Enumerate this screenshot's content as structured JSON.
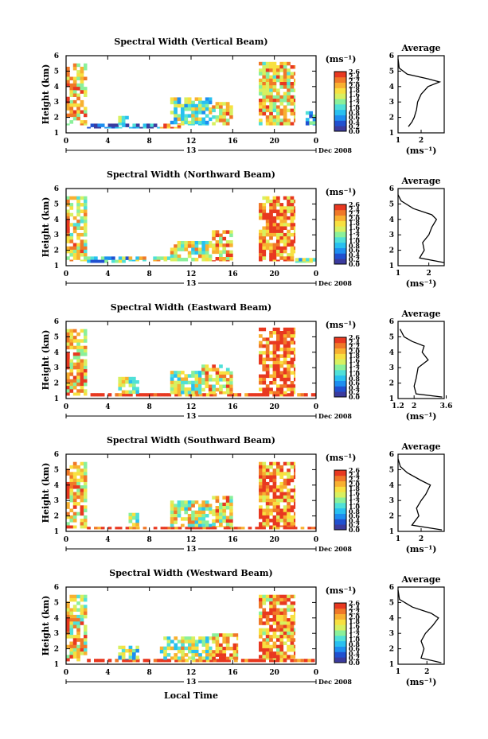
{
  "figure": {
    "xlabel": "Local Time",
    "x_ticks": [
      "0",
      "4",
      "8",
      "12",
      "16",
      "20",
      "0"
    ],
    "date_tick": "13",
    "date_label": "Dec 2008",
    "ylabel": "Height (km)",
    "y_ticks": [
      "1",
      "2",
      "3",
      "4",
      "5",
      "6"
    ],
    "colorbar_unit": "(ms⁻¹)",
    "colorbar_ticks": [
      "2.6",
      "2.4",
      "2.2",
      "2.0",
      "1.8",
      "1.6",
      "1.4",
      "1.2",
      "1.0",
      "0.8",
      "0.6",
      "0.4",
      "0.2",
      "0.0"
    ],
    "profile_title": "Average",
    "profile_xlabel": "(ms⁻¹)"
  },
  "colors": {
    "colormap": [
      "#3b3b9e",
      "#2050d0",
      "#1d8ef0",
      "#28c0f0",
      "#4fe0d8",
      "#8af09a",
      "#d8f060",
      "#f8e040",
      "#f8b030",
      "#f07828",
      "#e83820"
    ]
  },
  "chart_data": [
    {
      "type": "heatmap",
      "title": "Spectral Width (Vertical Beam)",
      "x_range_hours": [
        0,
        24
      ],
      "ylim": [
        1,
        6
      ],
      "ylabel": "Height (km)",
      "blocks": [
        {
          "t": [
            0,
            2
          ],
          "h": [
            1.5,
            5.5
          ],
          "level": 0.75
        },
        {
          "t": [
            2,
            9
          ],
          "h": [
            1.3,
            1.6
          ],
          "level": 0.15
        },
        {
          "t": [
            5,
            6
          ],
          "h": [
            1.5,
            2.1
          ],
          "level": 0.5
        },
        {
          "t": [
            9,
            11
          ],
          "h": [
            1.3,
            1.6
          ],
          "level": 0.95
        },
        {
          "t": [
            10,
            14
          ],
          "h": [
            1.5,
            3.3
          ],
          "level": 0.5
        },
        {
          "t": [
            14,
            16
          ],
          "h": [
            1.5,
            3.0
          ],
          "level": 0.7
        },
        {
          "t": [
            18.5,
            22
          ],
          "h": [
            1.5,
            5.6
          ],
          "level": 0.7
        },
        {
          "t": [
            23,
            24
          ],
          "h": [
            1.5,
            2.4
          ],
          "level": 0.35
        }
      ],
      "profile": {
        "xlim": [
          1,
          3
        ],
        "x_ticks": [
          "1",
          "2"
        ],
        "height": [
          1.4,
          1.7,
          2.0,
          2.5,
          3.0,
          3.5,
          4.0,
          4.3,
          4.5,
          4.8,
          5.2,
          5.8
        ],
        "value": [
          1.45,
          1.6,
          1.7,
          1.8,
          1.85,
          2.0,
          2.3,
          2.8,
          2.3,
          1.4,
          1.05,
          1.0
        ]
      }
    },
    {
      "type": "heatmap",
      "title": "Spectral Width (Northward Beam)",
      "x_range_hours": [
        0,
        24
      ],
      "ylim": [
        1,
        6
      ],
      "ylabel": "Height (km)",
      "blocks": [
        {
          "t": [
            0,
            2
          ],
          "h": [
            1.3,
            5.5
          ],
          "level": 0.7
        },
        {
          "t": [
            2,
            6
          ],
          "h": [
            1.2,
            1.6
          ],
          "level": 0.4
        },
        {
          "t": [
            6,
            10
          ],
          "h": [
            1.3,
            1.6
          ],
          "level": 0.6
        },
        {
          "t": [
            10,
            14
          ],
          "h": [
            1.3,
            2.6
          ],
          "level": 0.6
        },
        {
          "t": [
            14,
            16
          ],
          "h": [
            1.3,
            3.3
          ],
          "level": 0.75
        },
        {
          "t": [
            18.5,
            22
          ],
          "h": [
            1.3,
            5.5
          ],
          "level": 0.85
        },
        {
          "t": [
            22,
            24
          ],
          "h": [
            1.2,
            1.5
          ],
          "level": 0.45
        }
      ],
      "profile": {
        "xlim": [
          1,
          2.5
        ],
        "x_ticks": [
          "1",
          "2"
        ],
        "height": [
          1.2,
          1.5,
          2.0,
          2.5,
          3.0,
          3.5,
          4.0,
          4.3,
          4.7,
          5.2,
          5.6
        ],
        "value": [
          2.5,
          1.7,
          1.85,
          1.8,
          2.0,
          2.1,
          2.25,
          2.1,
          1.5,
          1.1,
          1.0
        ]
      }
    },
    {
      "type": "heatmap",
      "title": "Spectral Width (Eastward Beam)",
      "x_range_hours": [
        0,
        24
      ],
      "ylim": [
        1,
        6
      ],
      "ylabel": "Height (km)",
      "blocks": [
        {
          "t": [
            0,
            2
          ],
          "h": [
            1.2,
            5.5
          ],
          "level": 0.75
        },
        {
          "t": [
            2,
            24
          ],
          "h": [
            1.15,
            1.35
          ],
          "level": 0.95
        },
        {
          "t": [
            5,
            7
          ],
          "h": [
            1.3,
            2.4
          ],
          "level": 0.5
        },
        {
          "t": [
            10,
            13
          ],
          "h": [
            1.3,
            2.8
          ],
          "level": 0.55
        },
        {
          "t": [
            13,
            16
          ],
          "h": [
            1.3,
            3.2
          ],
          "level": 0.7
        },
        {
          "t": [
            18.5,
            22
          ],
          "h": [
            1.3,
            5.6
          ],
          "level": 0.9
        }
      ],
      "profile": {
        "xlim": [
          1.2,
          3.5
        ],
        "x_ticks": [
          "1.2",
          "2",
          "3.6"
        ],
        "height": [
          1.1,
          1.3,
          1.8,
          2.3,
          3.0,
          3.5,
          4.0,
          4.4,
          4.7,
          5.0,
          5.5
        ],
        "value": [
          3.4,
          2.1,
          2.0,
          2.1,
          2.2,
          2.7,
          2.4,
          2.5,
          1.9,
          1.5,
          1.3
        ]
      }
    },
    {
      "type": "heatmap",
      "title": "Spectral Width (Southward Beam)",
      "x_range_hours": [
        0,
        24
      ],
      "ylim": [
        1,
        6
      ],
      "ylabel": "Height (km)",
      "blocks": [
        {
          "t": [
            0,
            2
          ],
          "h": [
            1.2,
            5.5
          ],
          "level": 0.75
        },
        {
          "t": [
            2,
            24
          ],
          "h": [
            1.15,
            1.3
          ],
          "level": 0.95
        },
        {
          "t": [
            6,
            7
          ],
          "h": [
            1.3,
            2.2
          ],
          "level": 0.55
        },
        {
          "t": [
            10,
            14
          ],
          "h": [
            1.3,
            3.0
          ],
          "level": 0.6
        },
        {
          "t": [
            14,
            16
          ],
          "h": [
            1.3,
            3.3
          ],
          "level": 0.7
        },
        {
          "t": [
            18.5,
            22
          ],
          "h": [
            1.3,
            5.5
          ],
          "level": 0.85
        }
      ],
      "profile": {
        "xlim": [
          1,
          3
        ],
        "x_ticks": [
          "1",
          "2"
        ],
        "height": [
          1.1,
          1.4,
          2.0,
          2.5,
          3.0,
          3.4,
          4.0,
          4.3,
          4.8,
          5.2,
          5.7
        ],
        "value": [
          2.9,
          1.6,
          1.9,
          1.8,
          2.0,
          2.2,
          2.4,
          2.0,
          1.4,
          1.1,
          1.0
        ]
      }
    },
    {
      "type": "heatmap",
      "title": "Spectral Width (Westward Beam)",
      "x_range_hours": [
        0,
        24
      ],
      "ylim": [
        1,
        6
      ],
      "ylabel": "Height (km)",
      "blocks": [
        {
          "t": [
            0,
            2
          ],
          "h": [
            1.2,
            5.5
          ],
          "level": 0.7
        },
        {
          "t": [
            2,
            24
          ],
          "h": [
            1.15,
            1.35
          ],
          "level": 0.95
        },
        {
          "t": [
            5,
            7
          ],
          "h": [
            1.3,
            2.2
          ],
          "level": 0.5
        },
        {
          "t": [
            9,
            14
          ],
          "h": [
            1.3,
            2.8
          ],
          "level": 0.55
        },
        {
          "t": [
            14,
            16.5
          ],
          "h": [
            1.3,
            3.0
          ],
          "level": 0.8
        },
        {
          "t": [
            18.5,
            22
          ],
          "h": [
            1.3,
            5.5
          ],
          "level": 0.8
        }
      ],
      "profile": {
        "xlim": [
          1,
          2.6
        ],
        "x_ticks": [
          "1",
          "2"
        ],
        "height": [
          1.1,
          1.4,
          2.0,
          2.5,
          3.0,
          3.5,
          4.0,
          4.3,
          4.7,
          5.2,
          5.8
        ],
        "value": [
          2.5,
          1.8,
          1.9,
          1.8,
          1.95,
          2.2,
          2.4,
          2.15,
          1.5,
          1.05,
          1.0
        ]
      }
    }
  ]
}
